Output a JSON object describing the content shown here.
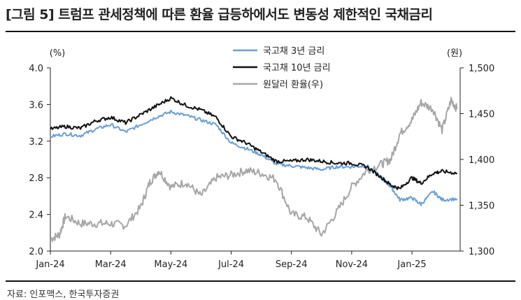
{
  "title": "[그림 5] 트럼프 관세정책에 따른 환율 급등하에서도 변동성 제한적인 국채금리",
  "source": "자료: 인포맥스, 한국투자증권",
  "chart_data": {
    "type": "line",
    "left_axis": {
      "unit": "(%)",
      "ylim": [
        2.0,
        4.0
      ],
      "ticks": [
        "2.0",
        "2.4",
        "2.8",
        "3.2",
        "3.6",
        "4.0"
      ]
    },
    "right_axis": {
      "unit": "(원)",
      "ylim": [
        1300,
        1500
      ],
      "ticks": [
        "1,300",
        "1,350",
        "1,400",
        "1,450",
        "1,500"
      ]
    },
    "x_ticks": [
      "Jan-24",
      "Mar-24",
      "May-24",
      "Jul-24",
      "Sep-24",
      "Nov-24",
      "Jan-25"
    ],
    "x_tick_months": [
      0,
      2,
      4,
      6,
      8,
      10,
      12
    ],
    "x_range_months": [
      0,
      13.6
    ],
    "legend_position": "top-center",
    "grid": false,
    "series": [
      {
        "name": "국고채 3년 금리",
        "axis": "left",
        "color": "#6a9fd6",
        "points": [
          [
            0,
            3.25
          ],
          [
            0.5,
            3.28
          ],
          [
            1,
            3.26
          ],
          [
            1.5,
            3.33
          ],
          [
            2,
            3.38
          ],
          [
            2.5,
            3.3
          ],
          [
            3,
            3.38
          ],
          [
            3.5,
            3.46
          ],
          [
            4,
            3.52
          ],
          [
            4.5,
            3.48
          ],
          [
            5,
            3.43
          ],
          [
            5.5,
            3.38
          ],
          [
            6,
            3.18
          ],
          [
            6.5,
            3.12
          ],
          [
            7,
            3.05
          ],
          [
            7.5,
            2.95
          ],
          [
            8,
            2.93
          ],
          [
            8.5,
            2.91
          ],
          [
            9,
            2.89
          ],
          [
            9.5,
            2.92
          ],
          [
            10,
            2.92
          ],
          [
            10.5,
            2.93
          ],
          [
            11,
            2.8
          ],
          [
            11.3,
            2.7
          ],
          [
            11.6,
            2.56
          ],
          [
            12,
            2.58
          ],
          [
            12.3,
            2.51
          ],
          [
            12.7,
            2.65
          ],
          [
            13,
            2.56
          ],
          [
            13.5,
            2.57
          ]
        ]
      },
      {
        "name": "국고채 10년 금리",
        "axis": "left",
        "color": "#111111",
        "points": [
          [
            0,
            3.33
          ],
          [
            0.5,
            3.36
          ],
          [
            1,
            3.34
          ],
          [
            1.5,
            3.42
          ],
          [
            2,
            3.46
          ],
          [
            2.5,
            3.4
          ],
          [
            3,
            3.49
          ],
          [
            3.5,
            3.58
          ],
          [
            4,
            3.67
          ],
          [
            4.5,
            3.59
          ],
          [
            5,
            3.54
          ],
          [
            5.5,
            3.46
          ],
          [
            6,
            3.25
          ],
          [
            6.5,
            3.18
          ],
          [
            7,
            3.08
          ],
          [
            7.5,
            2.98
          ],
          [
            8,
            2.98
          ],
          [
            8.5,
            3.0
          ],
          [
            9,
            2.98
          ],
          [
            9.5,
            2.96
          ],
          [
            10,
            2.96
          ],
          [
            10.5,
            2.92
          ],
          [
            11,
            2.8
          ],
          [
            11.3,
            2.72
          ],
          [
            11.6,
            2.68
          ],
          [
            12,
            2.8
          ],
          [
            12.3,
            2.74
          ],
          [
            12.7,
            2.85
          ],
          [
            13,
            2.87
          ],
          [
            13.5,
            2.85
          ]
        ]
      },
      {
        "name": "원달러 환율(우)",
        "axis": "right",
        "color": "#a6a6a6",
        "points": [
          [
            0,
            1313
          ],
          [
            0.3,
            1318
          ],
          [
            0.5,
            1338
          ],
          [
            1,
            1330
          ],
          [
            1.5,
            1330
          ],
          [
            2,
            1330
          ],
          [
            2.5,
            1328
          ],
          [
            3,
            1348
          ],
          [
            3.3,
            1375
          ],
          [
            3.6,
            1388
          ],
          [
            4,
            1370
          ],
          [
            4.5,
            1375
          ],
          [
            5,
            1360
          ],
          [
            5.5,
            1380
          ],
          [
            6,
            1383
          ],
          [
            6.5,
            1388
          ],
          [
            7,
            1385
          ],
          [
            7.5,
            1378
          ],
          [
            8,
            1340
          ],
          [
            8.5,
            1337
          ],
          [
            9,
            1318
          ],
          [
            9.5,
            1342
          ],
          [
            10,
            1370
          ],
          [
            10.5,
            1388
          ],
          [
            11,
            1395
          ],
          [
            11.3,
            1400
          ],
          [
            11.6,
            1428
          ],
          [
            12,
            1443
          ],
          [
            12.3,
            1462
          ],
          [
            12.7,
            1455
          ],
          [
            13,
            1432
          ],
          [
            13.3,
            1465
          ],
          [
            13.5,
            1455
          ]
        ]
      }
    ]
  }
}
